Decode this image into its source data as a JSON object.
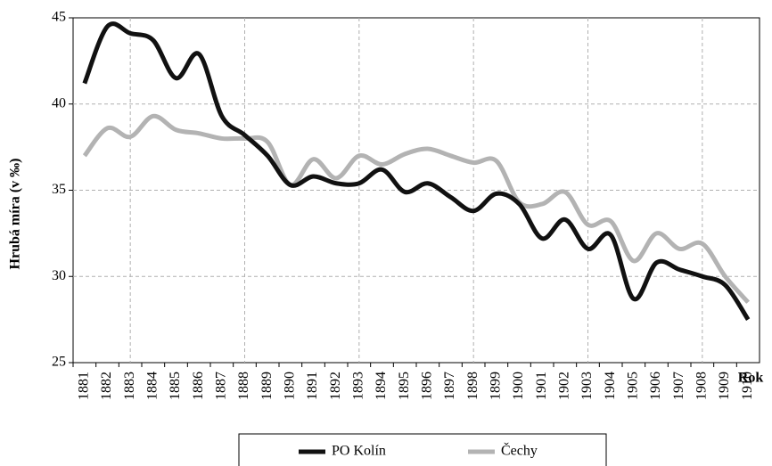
{
  "chart_data": {
    "type": "line",
    "y_label": "Hrubá míra (v ‰)",
    "x_label": "Rok",
    "categories": [
      "1881",
      "1882",
      "1883",
      "1884",
      "1885",
      "1886",
      "1887",
      "1888",
      "1889",
      "1890",
      "1891",
      "1892",
      "1893",
      "1894",
      "1895",
      "1896",
      "1897",
      "1898",
      "1899",
      "1900",
      "1901",
      "1902",
      "1903",
      "1904",
      "1905",
      "1906",
      "1907",
      "1908",
      "1909",
      "1910"
    ],
    "series": [
      {
        "name": "PO Kolín",
        "color": "#111111",
        "values": [
          41.2,
          44.5,
          44.1,
          43.7,
          41.5,
          42.9,
          39.3,
          38.2,
          37.0,
          35.3,
          35.8,
          35.4,
          35.4,
          36.2,
          34.9,
          35.4,
          34.6,
          33.8,
          34.8,
          34.2,
          32.2,
          33.3,
          31.6,
          32.4,
          28.7,
          30.8,
          30.4,
          30.0,
          29.5,
          27.5
        ]
      },
      {
        "name": "Čechy",
        "color": "#b3b3b3",
        "values": [
          37.0,
          38.6,
          38.1,
          39.3,
          38.5,
          38.3,
          38.0,
          38.0,
          37.8,
          35.3,
          36.8,
          35.7,
          37.0,
          36.5,
          37.1,
          37.4,
          37.0,
          36.6,
          36.7,
          34.3,
          34.2,
          34.9,
          33.0,
          33.2,
          30.9,
          32.5,
          31.6,
          31.9,
          30.0,
          28.5
        ]
      }
    ],
    "ylim": [
      25,
      45
    ],
    "yticks": [
      25,
      30,
      35,
      40,
      45
    ],
    "x_grid_every": 5,
    "x_grid_start": 2,
    "grid": true,
    "legend": "bottom"
  }
}
